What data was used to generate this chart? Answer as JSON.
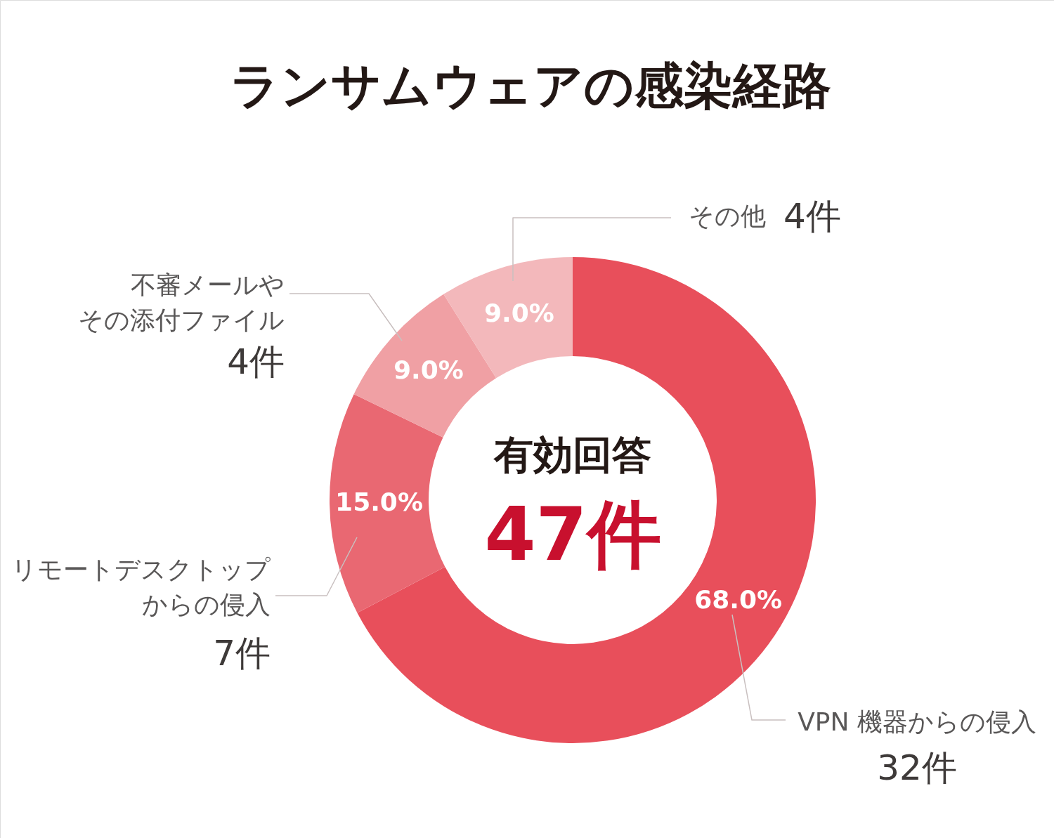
{
  "chart_data": {
    "type": "donut",
    "title": "ランサムウェアの感染経路",
    "categories": [
      "VPN 機器からの侵入",
      "リモートデスクトップからの侵入",
      "不審メールやその添付ファイル",
      "その他"
    ],
    "values": [
      68.0,
      15.0,
      9.0,
      9.0
    ],
    "colors": [
      "#e84f5b",
      "#e96872",
      "#f0a0a4",
      "#f3b8bb"
    ],
    "value_labels": [
      "68.0%",
      "15.0%",
      "9.0%",
      "9.0%"
    ],
    "annotations": [
      "32件",
      "7件",
      "4件",
      "4件",
      "有効回答",
      "47件"
    ]
  }
}
